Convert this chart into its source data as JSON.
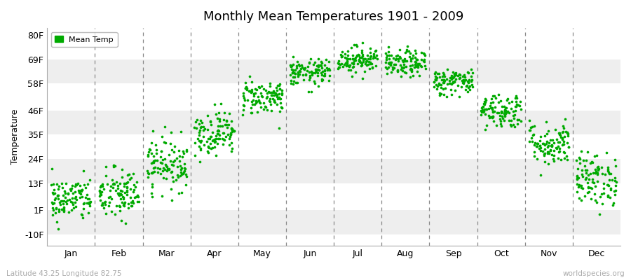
{
  "title": "Monthly Mean Temperatures 1901 - 2009",
  "ylabel": "Temperature",
  "xlabel_labels": [
    "Jan",
    "Feb",
    "Mar",
    "Apr",
    "May",
    "Jun",
    "Jul",
    "Aug",
    "Sep",
    "Oct",
    "Nov",
    "Dec"
  ],
  "ytick_labels": [
    "-10F",
    "1F",
    "13F",
    "24F",
    "35F",
    "46F",
    "58F",
    "69F",
    "80F"
  ],
  "ytick_values": [
    -10,
    1,
    13,
    24,
    35,
    46,
    58,
    69,
    80
  ],
  "ylim": [
    -15,
    83
  ],
  "dot_color": "#00aa00",
  "legend_label": "Mean Temp",
  "bg_color": "#ffffff",
  "plot_bg_color": "#ffffff",
  "stripe_color": "#eeeeee",
  "footnote_left": "Latitude 43.25 Longitude 82.75",
  "footnote_right": "worldspecies.org",
  "monthly_means": [
    6,
    8,
    22,
    36,
    52,
    63,
    69,
    67,
    59,
    46,
    31,
    15
  ],
  "monthly_stds": [
    5,
    6,
    6,
    5,
    4,
    3,
    3,
    3,
    3,
    4,
    5,
    6
  ],
  "n_years": 109,
  "seed": 42,
  "dot_size": 7
}
